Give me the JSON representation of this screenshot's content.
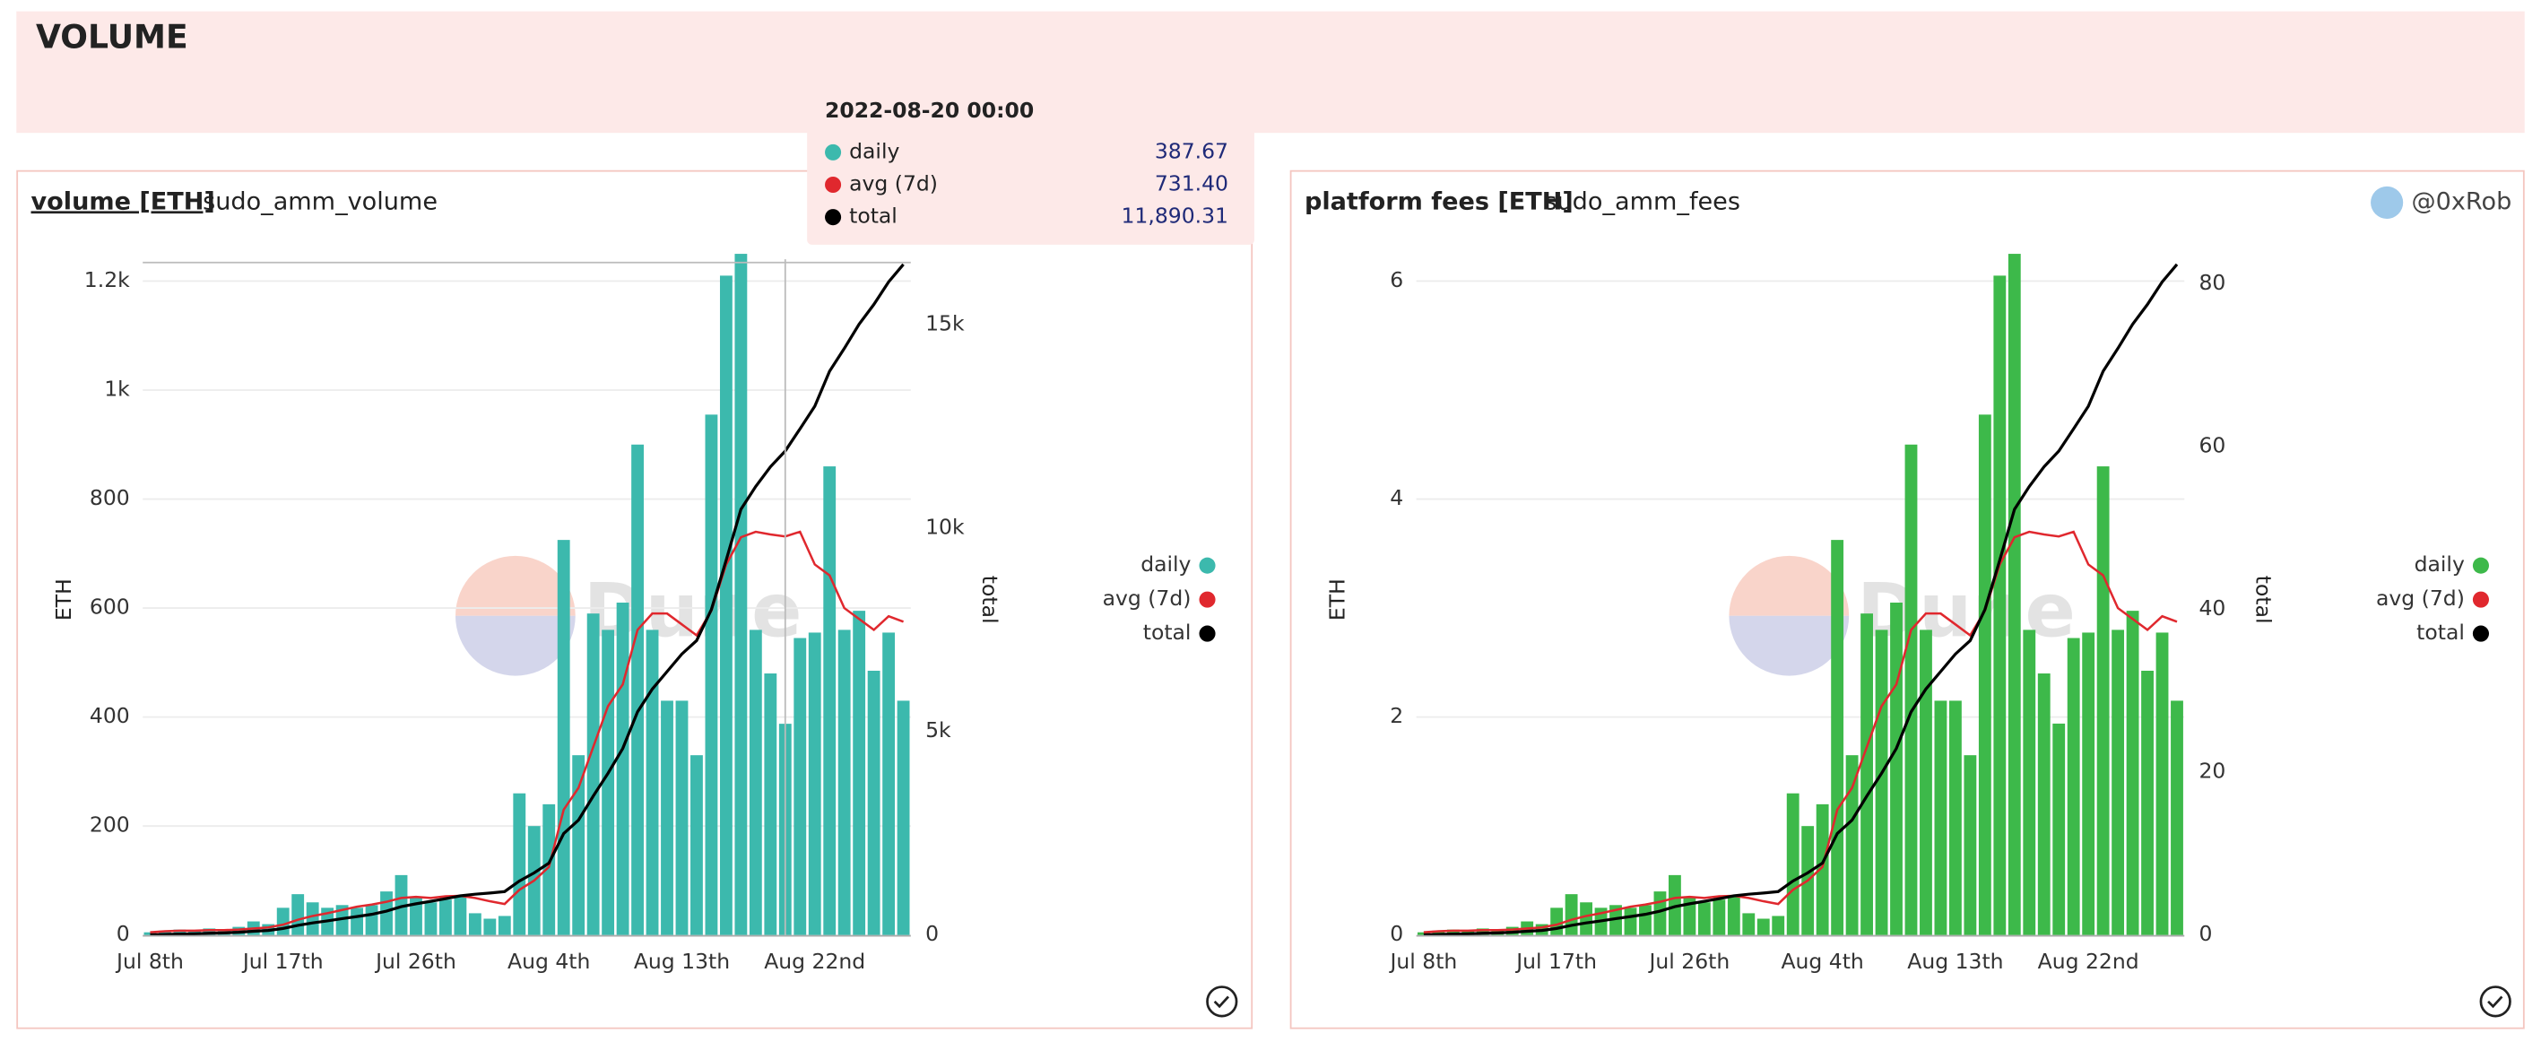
{
  "header": {
    "title": "VOLUME"
  },
  "author": "@0xRob",
  "watermark": "Dune",
  "tooltip": {
    "date": "2022-08-20 00:00",
    "rows": [
      {
        "name": "daily",
        "value": 387.67
      },
      {
        "name": "avg (7d)",
        "value": 731.4,
        "label": "731.40"
      },
      {
        "name": "total",
        "value": 11890.31,
        "label": "11,890.31"
      }
    ]
  },
  "chart_data": [
    {
      "type": "bar",
      "title": "volume [ETH]",
      "subtitle": "sudo_amm_volume",
      "ylabel": "ETH",
      "y2label": "total",
      "categories": [
        "Jul 8th",
        null,
        null,
        null,
        null,
        null,
        null,
        null,
        null,
        "Jul 17th",
        null,
        null,
        null,
        null,
        null,
        null,
        null,
        null,
        "Jul 26th",
        null,
        null,
        null,
        null,
        null,
        null,
        null,
        null,
        "Aug 4th",
        null,
        null,
        null,
        null,
        null,
        null,
        null,
        null,
        "Aug 13th",
        null,
        null,
        null,
        null,
        null,
        null,
        null,
        null,
        "Aug 22nd",
        null,
        null,
        null,
        null,
        null,
        null
      ],
      "ylim": [
        0,
        1240
      ],
      "yticks": [
        0,
        200,
        400,
        600,
        800,
        {
          "value": 1000,
          "label": "1k"
        },
        {
          "value": 1200,
          "label": "1.2k"
        }
      ],
      "y2lim": [
        0,
        16600
      ],
      "y2ticks": [
        0,
        {
          "value": 5000,
          "label": "5k"
        },
        {
          "value": 10000,
          "label": "10k"
        },
        {
          "value": 15000,
          "label": "15k"
        }
      ],
      "grid": true,
      "legend": "right",
      "series": [
        {
          "name": "daily",
          "type": "bar",
          "color": "#3cb9ad",
          "values": [
            5,
            8,
            10,
            8,
            12,
            10,
            15,
            25,
            20,
            50,
            75,
            60,
            50,
            55,
            50,
            55,
            80,
            110,
            70,
            60,
            65,
            70,
            40,
            30,
            35,
            260,
            200,
            240,
            725,
            330,
            590,
            560,
            610,
            900,
            560,
            430,
            430,
            330,
            955,
            1210,
            1250,
            560,
            480,
            387.67,
            545,
            555,
            860,
            560,
            595,
            485,
            555,
            430
          ]
        },
        {
          "name": "avg (7d)",
          "type": "line",
          "color": "#e0282e",
          "values": [
            5,
            7,
            8,
            8,
            9,
            9,
            10,
            12,
            14,
            19,
            28,
            35,
            40,
            46,
            52,
            56,
            61,
            68,
            70,
            68,
            71,
            72,
            68,
            62,
            57,
            83,
            100,
            125,
            230,
            270,
            345,
            420,
            460,
            560,
            590,
            590,
            570,
            550,
            595,
            680,
            730,
            740,
            735,
            731.4,
            740,
            680,
            660,
            600,
            580,
            560,
            585,
            575
          ]
        },
        {
          "name": "total",
          "type": "line",
          "axis": "y2",
          "color": "#000000",
          "values": [
            5,
            13,
            23,
            31,
            43,
            53,
            68,
            93,
            113,
            163,
            238,
            298,
            348,
            403,
            453,
            508,
            588,
            698,
            768,
            828,
            893,
            963,
            1003,
            1033,
            1068,
            1328,
            1528,
            1768,
            2493,
            2823,
            3413,
            3973,
            4583,
            5483,
            6043,
            6473,
            6903,
            7233,
            7998,
            9208,
            10458,
            11018,
            11502,
            11890.31,
            12435,
            12990,
            13850,
            14410,
            15005,
            15490,
            16045,
            16475
          ]
        }
      ]
    },
    {
      "type": "bar",
      "title": "platform fees [ETH]",
      "subtitle": "sudo_amm_fees",
      "ylabel": "ETH",
      "y2label": "total",
      "categories": [
        "Jul 8th",
        null,
        null,
        null,
        null,
        null,
        null,
        null,
        null,
        "Jul 17th",
        null,
        null,
        null,
        null,
        null,
        null,
        null,
        null,
        "Jul 26th",
        null,
        null,
        null,
        null,
        null,
        null,
        null,
        null,
        "Aug 4th",
        null,
        null,
        null,
        null,
        null,
        null,
        null,
        null,
        "Aug 13th",
        null,
        null,
        null,
        null,
        null,
        null,
        null,
        null,
        "Aug 22nd",
        null,
        null,
        null,
        null,
        null,
        null
      ],
      "ylim": [
        0,
        6.2
      ],
      "yticks": [
        0,
        2,
        4,
        6
      ],
      "y2lim": [
        0,
        83
      ],
      "y2ticks": [
        0,
        20,
        40,
        60,
        80
      ],
      "grid": true,
      "legend": "right",
      "series": [
        {
          "name": "daily",
          "type": "bar",
          "color": "#3db94a",
          "values": [
            0.025,
            0.04,
            0.05,
            0.04,
            0.06,
            0.05,
            0.075,
            0.125,
            0.1,
            0.25,
            0.375,
            0.3,
            0.25,
            0.275,
            0.25,
            0.275,
            0.4,
            0.55,
            0.35,
            0.3,
            0.325,
            0.35,
            0.2,
            0.15,
            0.175,
            1.3,
            1,
            1.2,
            3.625,
            1.65,
            2.95,
            2.8,
            3.05,
            4.5,
            2.8,
            2.15,
            2.15,
            1.65,
            4.775,
            6.05,
            6.25,
            2.8,
            2.4,
            1.94,
            2.725,
            2.775,
            4.3,
            2.8,
            2.975,
            2.425,
            2.775,
            2.15
          ]
        },
        {
          "name": "avg (7d)",
          "type": "line",
          "color": "#e0282e",
          "values": [
            0.025,
            0.035,
            0.04,
            0.04,
            0.045,
            0.045,
            0.05,
            0.06,
            0.07,
            0.095,
            0.14,
            0.175,
            0.2,
            0.23,
            0.26,
            0.28,
            0.305,
            0.34,
            0.35,
            0.34,
            0.355,
            0.36,
            0.34,
            0.31,
            0.285,
            0.415,
            0.5,
            0.625,
            1.15,
            1.35,
            1.725,
            2.1,
            2.3,
            2.8,
            2.95,
            2.95,
            2.85,
            2.75,
            2.975,
            3.4,
            3.65,
            3.7,
            3.675,
            3.657,
            3.7,
            3.4,
            3.3,
            3,
            2.9,
            2.8,
            2.925,
            2.875
          ]
        },
        {
          "name": "total",
          "type": "line",
          "axis": "y2",
          "color": "#000000",
          "values": [
            0.025,
            0.065,
            0.115,
            0.155,
            0.215,
            0.265,
            0.34,
            0.465,
            0.565,
            0.815,
            1.19,
            1.49,
            1.74,
            2.015,
            2.265,
            2.54,
            2.94,
            3.49,
            3.84,
            4.14,
            4.465,
            4.815,
            5.015,
            5.165,
            5.34,
            6.64,
            7.64,
            8.84,
            12.465,
            14.115,
            17.065,
            19.865,
            22.915,
            27.415,
            30.215,
            32.365,
            34.515,
            36.165,
            39.99,
            46.04,
            52.29,
            55.09,
            57.51,
            59.45,
            62.175,
            64.95,
            69.25,
            72.05,
            75.025,
            77.45,
            80.225,
            82.375
          ]
        }
      ]
    }
  ]
}
